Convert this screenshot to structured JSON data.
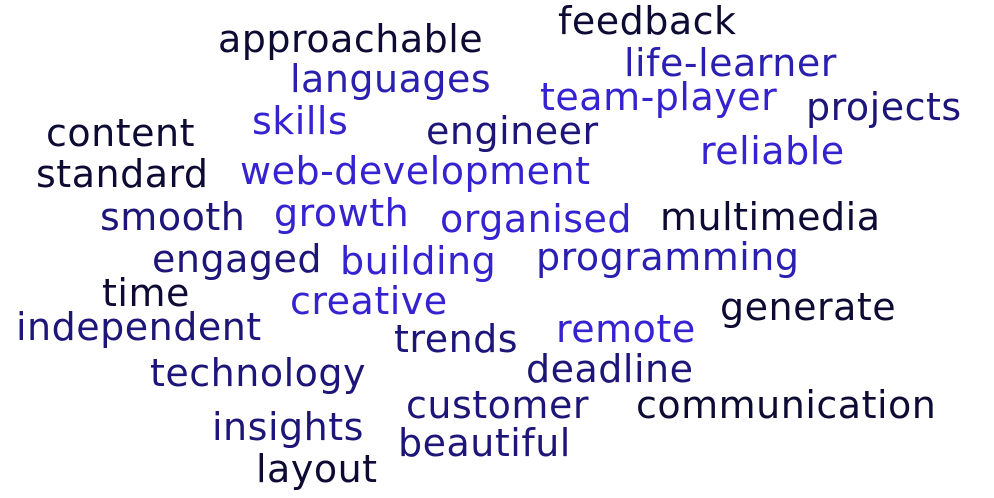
{
  "colors": {
    "dark": "#0d0b33",
    "navy": "#1d1578",
    "indigo": "#2a1fb0",
    "violet": "#3522d0"
  },
  "words": {
    "approachable": "approachable",
    "feedback": "feedback",
    "languages": "languages",
    "life_learner": "life-learner",
    "team_player": "team-player",
    "projects": "projects",
    "content": "content",
    "skills": "skills",
    "engineer": "engineer",
    "reliable": "reliable",
    "standard": "standard",
    "web_development": "web-development",
    "smooth": "smooth",
    "growth": "growth",
    "organised": "organised",
    "multimedia": "multimedia",
    "engaged": "engaged",
    "building": "building",
    "programming": "programming",
    "time": "time",
    "creative": "creative",
    "generate": "generate",
    "independent": "independent",
    "trends": "trends",
    "remote": "remote",
    "technology": "technology",
    "deadline": "deadline",
    "customer": "customer",
    "communication": "communication",
    "insights": "insights",
    "beautiful": "beautiful",
    "layout": "layout"
  }
}
